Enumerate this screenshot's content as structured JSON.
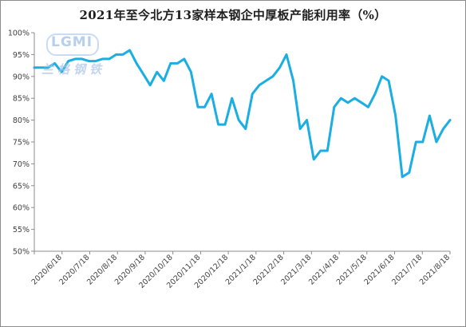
{
  "chart_data": {
    "type": "line",
    "title": "2021年至今北方13家样本钢企中厚板产能利用率（%）",
    "xlabel": "",
    "ylabel": "",
    "ylim": [
      50,
      100
    ],
    "yticks": [
      "50%",
      "55%",
      "60%",
      "65%",
      "70%",
      "75%",
      "80%",
      "85%",
      "90%",
      "95%",
      "100%"
    ],
    "xtick_labels": [
      "2020/6/18",
      "2020/7/18",
      "2020/8/18",
      "2020/9/18",
      "2020/10/18",
      "2020/11/18",
      "2020/12/18",
      "2021/1/18",
      "2021/2/18",
      "2021/3/18",
      "2021/4/18",
      "2021/5/18",
      "2021/6/18",
      "2021/7/18",
      "2021/8/18"
    ],
    "grid": false,
    "legend": "none",
    "line_color": "#1aaee3",
    "series": [
      {
        "values": [
          92,
          92,
          92,
          93,
          91,
          93.5,
          94,
          94,
          93.5,
          93.5,
          94,
          94,
          95,
          95,
          96,
          93,
          90.5,
          88,
          91,
          89,
          93,
          93,
          94,
          91,
          83,
          83,
          86,
          79,
          79,
          85,
          80,
          78,
          86,
          88,
          89,
          90,
          92,
          95,
          89,
          78,
          80,
          71,
          73,
          73,
          83,
          85,
          84,
          85,
          84,
          83,
          86,
          90,
          89,
          81,
          67,
          68,
          75,
          75,
          81,
          75,
          78,
          80
        ]
      }
    ]
  },
  "watermark": {
    "logo_text": "LGMI",
    "cn_text": "兰格钢铁"
  }
}
